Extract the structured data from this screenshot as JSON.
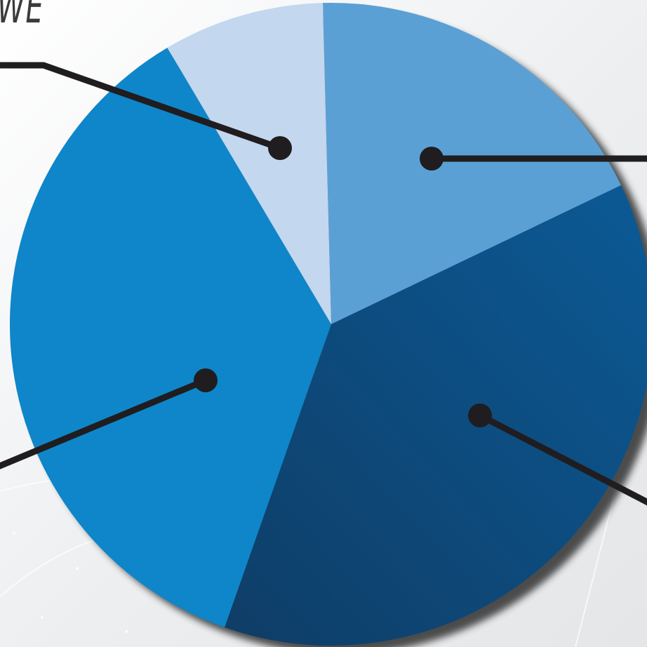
{
  "colors": {
    "background": "#eef0f2",
    "leader_line": "#1f1d1f",
    "shadow": "#3a3a3a"
  },
  "cut_label": "WE",
  "chart_data": {
    "type": "pie",
    "start_angle_deg": -1.5,
    "slices": [
      {
        "value": 18.3,
        "color": "#5ba0d5"
      },
      {
        "value": 37.5,
        "color": "#0f4472"
      },
      {
        "value": 36.1,
        "color": "#0e86c9"
      },
      {
        "value": 8.1,
        "color": "#c3d7ef"
      }
    ]
  }
}
